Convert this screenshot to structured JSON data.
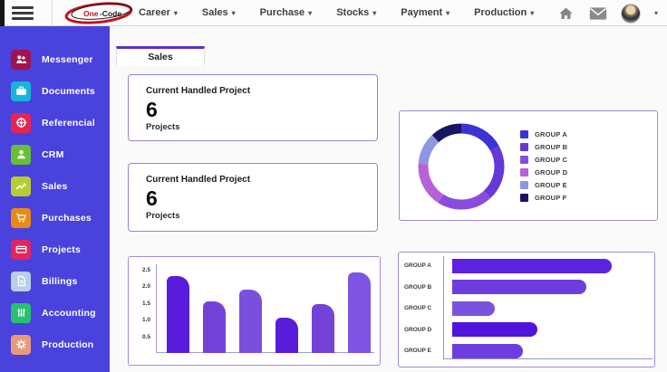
{
  "navbar": {
    "logo": {
      "text_primary": "One",
      "text_secondary": "Code",
      "ring_color": "#c41220"
    },
    "menu_items": [
      {
        "label": "Career"
      },
      {
        "label": "Sales"
      },
      {
        "label": "Purchase"
      },
      {
        "label": "Stocks"
      },
      {
        "label": "Payment"
      },
      {
        "label": "Production"
      }
    ],
    "right_icons": [
      "home-icon",
      "mail-icon",
      "user-avatar"
    ]
  },
  "sidebar": {
    "bg_color": "#4a42dd",
    "items": [
      {
        "label": "Messenger",
        "icon": "users-icon",
        "tile_color": "#a31250"
      },
      {
        "label": "Documents",
        "icon": "briefcase-icon",
        "tile_color": "#19b5d8"
      },
      {
        "label": "Referencial",
        "icon": "helm-icon",
        "tile_color": "#e82453"
      },
      {
        "label": "CRM",
        "icon": "person-icon",
        "tile_color": "#67bf35"
      },
      {
        "label": "Sales",
        "icon": "trend-up-icon",
        "tile_color": "#b7cc30"
      },
      {
        "label": "Purchases",
        "icon": "cart-icon",
        "tile_color": "#e88a16"
      },
      {
        "label": "Projects",
        "icon": "credit-card-icon",
        "tile_color": "#e0265e"
      },
      {
        "label": "Billings",
        "icon": "file-icon",
        "tile_color": "#b8cfe8"
      },
      {
        "label": "Accounting",
        "icon": "sliders-icon",
        "tile_color": "#27c26b"
      },
      {
        "label": "Production",
        "icon": "gear-icon",
        "tile_color": "#e89a78"
      }
    ]
  },
  "tab_label": "Sales",
  "cards": [
    {
      "title": "Current Handled Project",
      "value": "6",
      "subtitle": "Projects"
    },
    {
      "title": "Current Handled Project",
      "value": "6",
      "subtitle": "Projects"
    }
  ],
  "chart_data": [
    {
      "id": "group-donut",
      "type": "pie",
      "subtype": "donut",
      "labels": [
        "GROUP A",
        "GROUP B",
        "GROUP C",
        "GROUP D",
        "GROUP E",
        "GROUP F"
      ],
      "values": [
        17,
        21,
        21,
        17,
        12,
        12
      ],
      "colors": [
        "#3b33d4",
        "#6539d6",
        "#8a4be0",
        "#b761d6",
        "#8f96e3",
        "#1a1464"
      ],
      "legend_position": "right",
      "start_angle_deg": -90
    },
    {
      "id": "project-vbar",
      "type": "bar",
      "orientation": "vertical",
      "categories": [
        "",
        "",
        "",
        "",
        "",
        ""
      ],
      "values": [
        2.3,
        1.55,
        1.9,
        1.05,
        1.45,
        2.4
      ],
      "colors": [
        "#5a1cdb",
        "#7343d9",
        "#7b4fdd",
        "#5a1cdb",
        "#7343d9",
        "#7e55e2"
      ],
      "y_ticks": [
        0.5,
        1.0,
        1.5,
        2.0,
        2.5
      ],
      "ylim": [
        0,
        2.6
      ],
      "grid": false
    },
    {
      "id": "group-hbar",
      "type": "bar",
      "orientation": "horizontal",
      "categories": [
        "GROUP A",
        "GROUP B",
        "GROUP C",
        "GROUP D",
        "GROUP E"
      ],
      "values": [
        86,
        72,
        23,
        46,
        38
      ],
      "xlim": [
        0,
        100
      ],
      "colors": [
        "#5b22e0",
        "#6d3de0",
        "#7b52dd",
        "#5015dd",
        "#6d3de0"
      ],
      "grid": false
    }
  ]
}
